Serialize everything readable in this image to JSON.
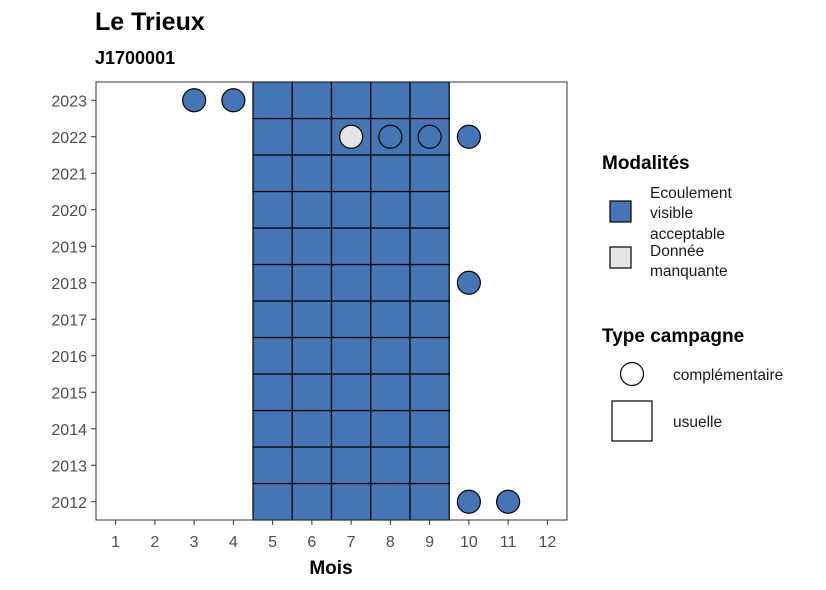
{
  "chart_data": {
    "type": "heatmap",
    "title": "Le Trieux",
    "subtitle": "J1700001",
    "xlabel": "Mois",
    "ylabel": "",
    "x_ticks": [
      1,
      2,
      3,
      4,
      5,
      6,
      7,
      8,
      9,
      10,
      11,
      12
    ],
    "y_ticks": [
      2012,
      2013,
      2014,
      2015,
      2016,
      2017,
      2018,
      2019,
      2020,
      2021,
      2022,
      2023
    ],
    "xlim": [
      0.5,
      12.5
    ],
    "ylim": [
      2011.5,
      2023.5
    ],
    "grid": false,
    "colors": {
      "ecoulement": "#4575b4",
      "manquante": "#e5e5e5"
    },
    "legend": {
      "placement": "right",
      "modalites": {
        "title": "Modalités",
        "items": [
          {
            "key": "ecoulement",
            "label_lines": [
              "Ecoulement",
              "visible",
              "acceptable"
            ]
          },
          {
            "key": "manquante",
            "label_lines": [
              "Donnée",
              "manquante"
            ]
          }
        ]
      },
      "type_campagne": {
        "title": "Type campagne",
        "items": [
          {
            "shape": "circle",
            "label": "complémentaire"
          },
          {
            "shape": "square",
            "label": "usuelle"
          }
        ]
      }
    },
    "usuelle_cells": {
      "months": [
        5,
        6,
        7,
        8,
        9
      ],
      "years": [
        2012,
        2013,
        2014,
        2015,
        2016,
        2017,
        2018,
        2019,
        2020,
        2021,
        2022,
        2023
      ],
      "modalite": "ecoulement"
    },
    "complementaire_points": [
      {
        "month": 3,
        "year": 2023,
        "modalite": "ecoulement"
      },
      {
        "month": 4,
        "year": 2023,
        "modalite": "ecoulement"
      },
      {
        "month": 7,
        "year": 2022,
        "modalite": "manquante"
      },
      {
        "month": 8,
        "year": 2022,
        "modalite": "ecoulement"
      },
      {
        "month": 9,
        "year": 2022,
        "modalite": "ecoulement"
      },
      {
        "month": 10,
        "year": 2022,
        "modalite": "ecoulement"
      },
      {
        "month": 10,
        "year": 2018,
        "modalite": "ecoulement"
      },
      {
        "month": 10,
        "year": 2012,
        "modalite": "ecoulement"
      },
      {
        "month": 11,
        "year": 2012,
        "modalite": "ecoulement"
      }
    ]
  }
}
